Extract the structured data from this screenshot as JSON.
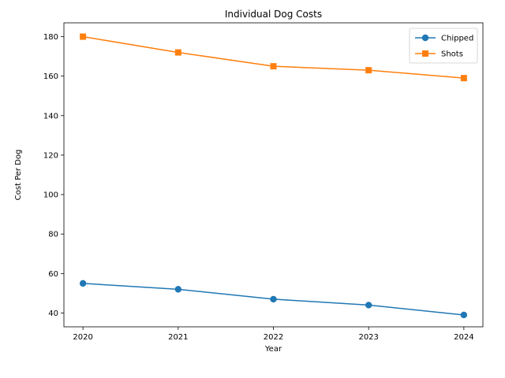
{
  "chart_data": {
    "type": "line",
    "title": "Individual Dog Costs",
    "xlabel": "Year",
    "ylabel": "Cost Per Dog",
    "x": [
      2020,
      2021,
      2022,
      2023,
      2024
    ],
    "xticks": [
      "2020",
      "2021",
      "2022",
      "2023",
      "2024"
    ],
    "yticks": [
      40,
      60,
      80,
      100,
      120,
      140,
      160,
      180
    ],
    "ylim": [
      33,
      187
    ],
    "grid": false,
    "legend_position": "upper right",
    "series": [
      {
        "name": "Chipped",
        "values": [
          55,
          52,
          47,
          44,
          39
        ],
        "color": "#1f77b4",
        "marker": "circle"
      },
      {
        "name": "Shots",
        "values": [
          180,
          172,
          165,
          163,
          159
        ],
        "color": "#ff7f0e",
        "marker": "square"
      }
    ]
  }
}
